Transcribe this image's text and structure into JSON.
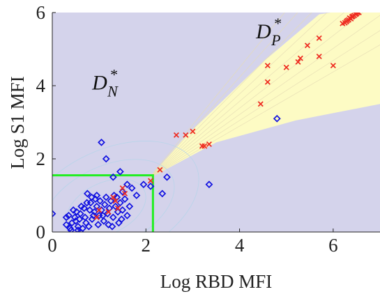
{
  "chart_data": {
    "type": "scatter",
    "xlabel": "Log RBD MFI",
    "ylabel": "Log S1 MFI",
    "xlim": [
      0,
      7
    ],
    "ylim": [
      0,
      6
    ],
    "x_ticks": [
      "0",
      "2",
      "4",
      "6"
    ],
    "x_tick_values": [
      0,
      2,
      4,
      6
    ],
    "y_ticks": [
      "0",
      "2",
      "4",
      "6"
    ],
    "y_tick_values": [
      0,
      2,
      4,
      6
    ],
    "grid": false,
    "background_color": "#d4d3eb",
    "regions": [
      {
        "label_main": "D",
        "label_super": "*",
        "label_sub": "N",
        "color": "#d4d3eb",
        "label_at": [
          0.85,
          3.9
        ]
      },
      {
        "label_main": "D",
        "label_super": "*",
        "label_sub": "P",
        "color": "#fdfbc4",
        "label_at": [
          4.35,
          5.3
        ],
        "boundary_upper": [
          [
            2.05,
            1.45
          ],
          [
            2.8,
            2.55
          ],
          [
            4.5,
            4.65
          ],
          [
            5.7,
            5.95
          ],
          [
            5.95,
            6.0
          ]
        ],
        "boundary_lower": [
          [
            2.05,
            1.45
          ],
          [
            3.5,
            2.45
          ],
          [
            5.2,
            3.05
          ],
          [
            6.8,
            3.45
          ],
          [
            7.0,
            3.5
          ]
        ]
      }
    ],
    "threshold_box": {
      "x": 2.15,
      "y": 1.55,
      "color": "#22ee22"
    },
    "series": [
      {
        "marker": "diamond-open",
        "color": "#1010e0",
        "points": [
          [
            1.05,
            2.45
          ],
          [
            1.15,
            2.0
          ],
          [
            1.45,
            1.65
          ],
          [
            1.3,
            1.5
          ],
          [
            2.45,
            1.5
          ],
          [
            1.95,
            1.3
          ],
          [
            2.1,
            1.25
          ],
          [
            3.35,
            1.3
          ],
          [
            2.35,
            1.05
          ],
          [
            4.8,
            3.1
          ],
          [
            1.5,
            1.1
          ],
          [
            1.7,
            1.2
          ],
          [
            1.8,
            1.0
          ],
          [
            0.75,
            1.05
          ],
          [
            0.95,
            1.0
          ],
          [
            1.6,
            1.3
          ],
          [
            0.0,
            0.5
          ],
          [
            0.3,
            0.2
          ],
          [
            0.35,
            0.45
          ],
          [
            0.45,
            0.6
          ],
          [
            0.4,
            0.05
          ],
          [
            0.5,
            0.3
          ],
          [
            0.55,
            0.15
          ],
          [
            0.6,
            0.5
          ],
          [
            0.62,
            0.7
          ],
          [
            0.7,
            0.4
          ],
          [
            0.72,
            0.25
          ],
          [
            0.8,
            0.6
          ],
          [
            0.82,
            0.8
          ],
          [
            0.85,
            0.35
          ],
          [
            0.9,
            0.55
          ],
          [
            0.92,
            0.9
          ],
          [
            0.95,
            0.7
          ],
          [
            1.0,
            0.45
          ],
          [
            1.02,
            0.85
          ],
          [
            1.05,
            0.6
          ],
          [
            1.1,
            0.3
          ],
          [
            1.12,
            0.75
          ],
          [
            1.15,
            0.95
          ],
          [
            1.18,
            0.5
          ],
          [
            1.2,
            0.2
          ],
          [
            1.22,
            0.65
          ],
          [
            1.25,
            0.85
          ],
          [
            1.3,
            0.4
          ],
          [
            1.32,
            1.0
          ],
          [
            1.35,
            0.7
          ],
          [
            1.4,
            0.55
          ],
          [
            1.42,
            0.25
          ],
          [
            1.45,
            0.8
          ],
          [
            1.5,
            0.6
          ],
          [
            1.55,
            0.9
          ],
          [
            1.6,
            0.45
          ],
          [
            1.65,
            0.7
          ],
          [
            0.55,
            0.05
          ],
          [
            0.65,
            0.1
          ],
          [
            0.48,
            0.4
          ],
          [
            0.58,
            0.35
          ],
          [
            0.68,
            0.65
          ],
          [
            0.78,
            0.15
          ],
          [
            0.88,
            0.45
          ],
          [
            0.98,
            0.2
          ],
          [
            1.08,
            0.45
          ],
          [
            1.28,
            0.15
          ],
          [
            0.52,
            0.55
          ],
          [
            0.42,
            0.25
          ],
          [
            0.74,
            0.8
          ],
          [
            0.84,
            0.95
          ],
          [
            1.38,
            0.95
          ],
          [
            1.48,
            0.35
          ],
          [
            0.38,
            0.1
          ],
          [
            0.3,
            0.4
          ],
          [
            0.6,
            0.0
          ]
        ]
      },
      {
        "marker": "x",
        "color": "#ee2b20",
        "points": [
          [
            2.65,
            2.65
          ],
          [
            2.85,
            2.65
          ],
          [
            3.0,
            2.75
          ],
          [
            3.2,
            2.35
          ],
          [
            3.25,
            2.35
          ],
          [
            3.35,
            2.4
          ],
          [
            2.3,
            1.7
          ],
          [
            2.1,
            1.4
          ],
          [
            4.45,
            3.5
          ],
          [
            4.6,
            4.55
          ],
          [
            4.6,
            4.1
          ],
          [
            5.0,
            4.5
          ],
          [
            5.25,
            4.65
          ],
          [
            5.3,
            4.75
          ],
          [
            5.45,
            5.1
          ],
          [
            5.7,
            4.8
          ],
          [
            5.7,
            5.3
          ],
          [
            6.0,
            4.55
          ],
          [
            1.5,
            1.2
          ],
          [
            1.3,
            0.95
          ],
          [
            1.0,
            0.6
          ],
          [
            0.95,
            0.4
          ],
          [
            1.4,
            0.65
          ],
          [
            1.55,
            1.05
          ],
          [
            1.2,
            0.55
          ],
          [
            1.35,
            0.85
          ],
          [
            6.2,
            5.7
          ],
          [
            6.25,
            5.72
          ],
          [
            6.28,
            5.75
          ],
          [
            6.3,
            5.78
          ],
          [
            6.33,
            5.8
          ],
          [
            6.35,
            5.85
          ],
          [
            6.38,
            5.83
          ],
          [
            6.4,
            5.88
          ],
          [
            6.42,
            5.9
          ],
          [
            6.45,
            5.92
          ],
          [
            6.48,
            5.95
          ],
          [
            6.5,
            5.97
          ],
          [
            6.52,
            6.0
          ],
          [
            6.55,
            6.0
          ]
        ]
      }
    ]
  }
}
